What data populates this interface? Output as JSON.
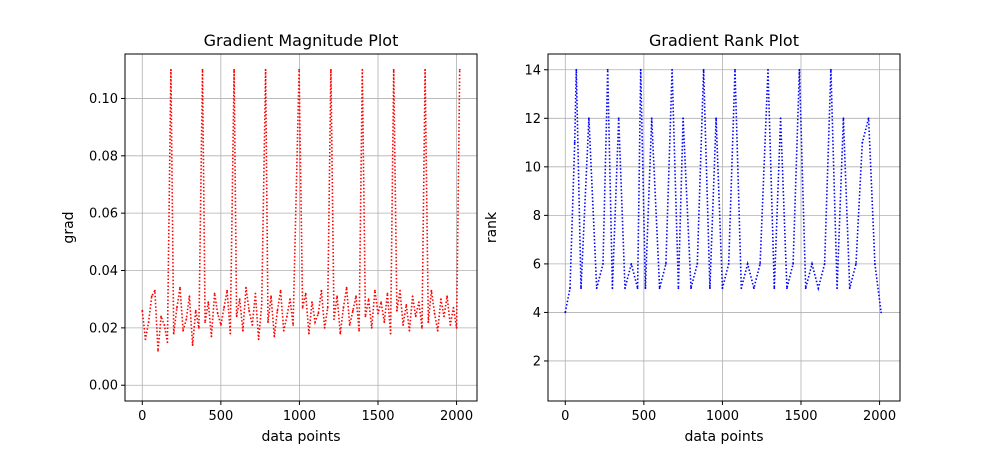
{
  "chart_data": [
    {
      "type": "line",
      "title": "Gradient Magnitude Plot",
      "xlabel": "data points",
      "ylabel": "grad",
      "xlim": [
        -110,
        2130
      ],
      "ylim": [
        -0.0055,
        0.1155
      ],
      "xticks": [
        0,
        500,
        1000,
        1500,
        2000
      ],
      "yticks": [
        0.0,
        0.02,
        0.04,
        0.06,
        0.08,
        0.1
      ],
      "ytick_labels": [
        "0.00",
        "0.02",
        "0.04",
        "0.06",
        "0.08",
        "0.10"
      ],
      "grid": true,
      "line_style": "dotted",
      "series": [
        {
          "color": "#ff0000",
          "x": [
            0,
            20,
            40,
            60,
            80,
            100,
            120,
            140,
            160,
            182,
            200,
            220,
            240,
            260,
            280,
            300,
            320,
            340,
            360,
            383,
            400,
            420,
            440,
            460,
            480,
            500,
            520,
            540,
            560,
            584,
            600,
            620,
            640,
            660,
            680,
            700,
            720,
            740,
            760,
            785,
            800,
            820,
            840,
            860,
            880,
            900,
            920,
            940,
            960,
            998,
            1020,
            1040,
            1060,
            1080,
            1100,
            1120,
            1140,
            1160,
            1180,
            1200,
            1220,
            1240,
            1260,
            1280,
            1300,
            1320,
            1340,
            1360,
            1380,
            1400,
            1420,
            1440,
            1460,
            1480,
            1500,
            1520,
            1540,
            1560,
            1580,
            1600,
            1620,
            1640,
            1660,
            1680,
            1700,
            1720,
            1740,
            1760,
            1780,
            1800,
            1820,
            1840,
            1860,
            1880,
            1900,
            1920,
            1940,
            1960,
            1980,
            2000,
            2020
          ],
          "y": [
            0.026,
            0.016,
            0.022,
            0.031,
            0.033,
            0.012,
            0.024,
            0.021,
            0.015,
            0.11,
            0.018,
            0.027,
            0.034,
            0.019,
            0.023,
            0.031,
            0.014,
            0.026,
            0.02,
            0.11,
            0.022,
            0.029,
            0.017,
            0.032,
            0.025,
            0.021,
            0.027,
            0.033,
            0.018,
            0.11,
            0.024,
            0.03,
            0.019,
            0.034,
            0.026,
            0.021,
            0.032,
            0.016,
            0.028,
            0.11,
            0.022,
            0.031,
            0.017,
            0.026,
            0.033,
            0.019,
            0.024,
            0.03,
            0.021,
            0.11,
            0.027,
            0.032,
            0.018,
            0.029,
            0.022,
            0.025,
            0.033,
            0.02,
            0.027,
            0.11,
            0.023,
            0.031,
            0.018,
            0.027,
            0.034,
            0.021,
            0.026,
            0.031,
            0.019,
            0.11,
            0.024,
            0.03,
            0.02,
            0.033,
            0.025,
            0.029,
            0.022,
            0.032,
            0.018,
            0.11,
            0.026,
            0.033,
            0.021,
            0.028,
            0.019,
            0.031,
            0.024,
            0.029,
            0.02,
            0.11,
            0.022,
            0.033,
            0.025,
            0.019,
            0.03,
            0.024,
            0.031,
            0.021,
            0.027,
            0.02,
            0.11
          ]
        }
      ]
    },
    {
      "type": "line",
      "title": "Gradient Rank Plot",
      "xlabel": "data points",
      "ylabel": "rank",
      "xlim": [
        -110,
        2130
      ],
      "ylim": [
        0.35,
        14.65
      ],
      "xticks": [
        0,
        500,
        1000,
        1500,
        2000
      ],
      "yticks": [
        2,
        4,
        6,
        8,
        10,
        12,
        14
      ],
      "ytick_labels": [
        "2",
        "4",
        "6",
        "8",
        "10",
        "12",
        "14"
      ],
      "grid": true,
      "line_style": "dotted",
      "series": [
        {
          "color": "#0000ff",
          "x": [
            0,
            30,
            60,
            70,
            100,
            150,
            200,
            240,
            270,
            300,
            340,
            380,
            420,
            460,
            480,
            510,
            550,
            600,
            640,
            680,
            720,
            750,
            800,
            840,
            880,
            920,
            960,
            1000,
            1040,
            1080,
            1120,
            1160,
            1200,
            1240,
            1290,
            1330,
            1370,
            1410,
            1450,
            1490,
            1530,
            1570,
            1610,
            1650,
            1690,
            1730,
            1770,
            1810,
            1850,
            1890,
            1930,
            1970,
            2010
          ],
          "y": [
            4.0,
            5.0,
            11.0,
            14.0,
            5.0,
            12.0,
            5.0,
            6.0,
            14.0,
            5.0,
            12.0,
            5.0,
            6.0,
            5.0,
            14.0,
            5.0,
            12.0,
            5.0,
            6.0,
            14.0,
            5.0,
            12.0,
            5.0,
            6.0,
            14.0,
            5.0,
            12.0,
            5.0,
            6.0,
            14.0,
            5.0,
            6.0,
            5.0,
            6.0,
            14.0,
            5.0,
            12.0,
            5.0,
            6.0,
            14.0,
            5.0,
            6.0,
            5.0,
            6.0,
            14.0,
            5.0,
            12.0,
            5.0,
            6.0,
            11.0,
            12.0,
            6.0,
            4.0
          ]
        }
      ]
    }
  ]
}
